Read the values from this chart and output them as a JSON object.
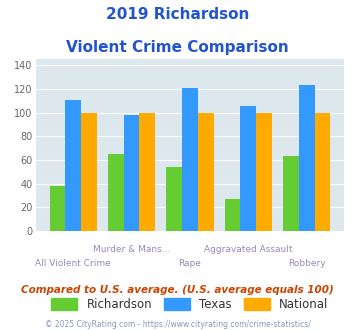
{
  "title_line1": "2019 Richardson",
  "title_line2": "Violent Crime Comparison",
  "categories": [
    "All Violent Crime",
    "Murder & Mans...",
    "Rape",
    "Aggravated Assault",
    "Robbery"
  ],
  "richardson": [
    38,
    65,
    54,
    27,
    63
  ],
  "texas": [
    111,
    98,
    121,
    106,
    123
  ],
  "national": [
    100,
    100,
    100,
    100,
    100
  ],
  "color_richardson": "#66cc33",
  "color_texas": "#3399ff",
  "color_national": "#ffaa00",
  "ylim": [
    0,
    145
  ],
  "yticks": [
    0,
    20,
    40,
    60,
    80,
    100,
    120,
    140
  ],
  "background_color": "#dce8ee",
  "title_color": "#2255cc",
  "footer_text": "Compared to U.S. average. (U.S. average equals 100)",
  "copyright_text": "© 2025 CityRating.com - https://www.cityrating.com/crime-statistics/",
  "legend_labels": [
    "Richardson",
    "Texas",
    "National"
  ],
  "bar_width": 0.27,
  "xlabel_color": "#9988bb",
  "footer_color": "#cc4400",
  "copyright_color": "#8899bb"
}
